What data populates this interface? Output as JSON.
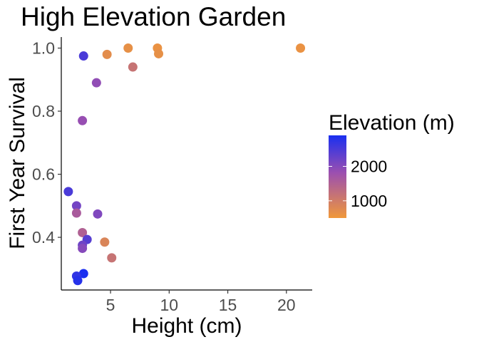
{
  "chart_data": {
    "type": "scatter",
    "title": "High Elevation Garden",
    "xlabel": "Height (cm)",
    "ylabel": "First Year Survival",
    "xlim": [
      0.8,
      22.2
    ],
    "ylim": [
      0.233,
      1.035
    ],
    "xticks": [
      5,
      10,
      15,
      20
    ],
    "yticks": [
      0.4,
      0.6,
      0.8,
      1.0
    ],
    "xtick_labels": [
      "5",
      "10",
      "15",
      "20"
    ],
    "ytick_labels": [
      "0.4",
      "0.6",
      "0.8",
      "1.0"
    ],
    "grid": false,
    "legend": {
      "title": "Elevation (m)",
      "position": "right",
      "type": "colorbar",
      "range": [
        500,
        2900
      ],
      "ticks": [
        2000,
        1000
      ],
      "tick_labels": [
        "2000",
        "1000"
      ],
      "color_low": "#f0983a",
      "color_mid": "#9b4fb0",
      "color_high": "#1a2ff0"
    },
    "points": [
      {
        "x": 2.7,
        "y": 0.975,
        "elevation": 2500
      },
      {
        "x": 4.7,
        "y": 0.98,
        "elevation": 700
      },
      {
        "x": 6.5,
        "y": 1.0,
        "elevation": 650
      },
      {
        "x": 9.0,
        "y": 1.0,
        "elevation": 600
      },
      {
        "x": 9.1,
        "y": 0.982,
        "elevation": 650
      },
      {
        "x": 21.2,
        "y": 1.0,
        "elevation": 600
      },
      {
        "x": 6.9,
        "y": 0.94,
        "elevation": 1150
      },
      {
        "x": 3.8,
        "y": 0.89,
        "elevation": 1900
      },
      {
        "x": 2.6,
        "y": 0.77,
        "elevation": 1850
      },
      {
        "x": 1.4,
        "y": 0.545,
        "elevation": 2500
      },
      {
        "x": 2.1,
        "y": 0.5,
        "elevation": 2150
      },
      {
        "x": 2.1,
        "y": 0.477,
        "elevation": 1600
      },
      {
        "x": 3.9,
        "y": 0.474,
        "elevation": 2050
      },
      {
        "x": 2.6,
        "y": 0.415,
        "elevation": 1500
      },
      {
        "x": 3.0,
        "y": 0.393,
        "elevation": 2400
      },
      {
        "x": 2.6,
        "y": 0.375,
        "elevation": 2200
      },
      {
        "x": 2.6,
        "y": 0.365,
        "elevation": 2000
      },
      {
        "x": 4.5,
        "y": 0.385,
        "elevation": 850
      },
      {
        "x": 5.1,
        "y": 0.335,
        "elevation": 1150
      },
      {
        "x": 2.7,
        "y": 0.285,
        "elevation": 2900
      },
      {
        "x": 2.1,
        "y": 0.277,
        "elevation": 2700
      },
      {
        "x": 2.2,
        "y": 0.263,
        "elevation": 2800
      }
    ]
  }
}
